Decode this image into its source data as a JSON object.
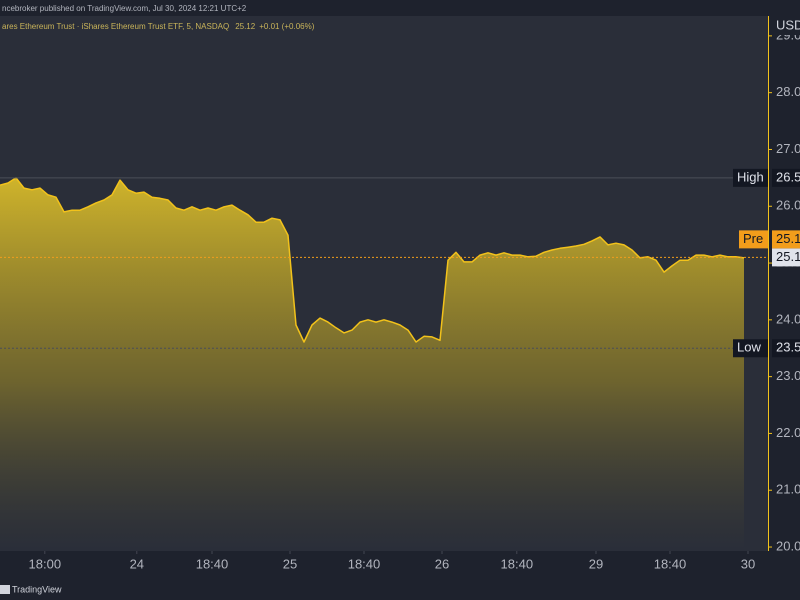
{
  "header": "ncebroker published on TradingView.com, Jul 30, 2024 12:21 UTC+2",
  "footer": "TradingView",
  "chart_data": {
    "type": "area",
    "legend_name": "ares Ethereum Trust · iShares Ethereum Trust ETF, 5, NASDAQ",
    "legend_price": 25.12,
    "legend_change": "+0.01 (+0.06%)",
    "currency": "USD",
    "color": "#f2c21b",
    "x": [
      0,
      1,
      2,
      3,
      4,
      5,
      6,
      7,
      8,
      9,
      10,
      11,
      12,
      13,
      14,
      15,
      16,
      17,
      18,
      19,
      20,
      21,
      22,
      23,
      24,
      25,
      26,
      27,
      28,
      29,
      30,
      31,
      32,
      33,
      34,
      35,
      36,
      37,
      38,
      39,
      40,
      41,
      42,
      43,
      44,
      45,
      46,
      47,
      48,
      49,
      50,
      51,
      52,
      53,
      54,
      55,
      56,
      57,
      58,
      59,
      60,
      61,
      62,
      63,
      64,
      65,
      66,
      67,
      68,
      69,
      70,
      71,
      72,
      73,
      74,
      75,
      76,
      77,
      78,
      79,
      80,
      81,
      82,
      83,
      84,
      85,
      86,
      87,
      88,
      89,
      90,
      91,
      92,
      93
    ],
    "values": [
      26.37,
      26.41,
      26.5,
      26.32,
      26.29,
      26.32,
      26.2,
      26.16,
      25.9,
      25.93,
      25.93,
      25.99,
      26.06,
      26.11,
      26.2,
      26.46,
      26.29,
      26.23,
      26.25,
      26.16,
      26.14,
      26.11,
      25.97,
      25.93,
      25.99,
      25.93,
      25.97,
      25.93,
      25.99,
      26.02,
      25.93,
      25.85,
      25.72,
      25.72,
      25.79,
      25.76,
      25.49,
      23.91,
      23.61,
      23.91,
      24.03,
      23.96,
      23.86,
      23.77,
      23.82,
      23.96,
      24.0,
      23.96,
      24.0,
      23.96,
      23.91,
      23.82,
      23.61,
      23.71,
      23.7,
      23.64,
      25.05,
      25.19,
      25.02,
      25.02,
      25.14,
      25.18,
      25.14,
      25.18,
      25.14,
      25.14,
      25.11,
      25.12,
      25.19,
      25.23,
      25.26,
      25.28,
      25.3,
      25.33,
      25.39,
      25.46,
      25.32,
      25.35,
      25.32,
      25.23,
      25.09,
      25.11,
      25.05,
      24.84,
      24.95,
      25.05,
      25.05,
      25.14,
      25.14,
      25.11,
      25.14,
      25.11,
      25.11,
      25.09
    ],
    "xlim": [
      0,
      96
    ],
    "xticks": [
      {
        "value": 5.6,
        "label": "18:00"
      },
      {
        "value": 17.1,
        "label": "24"
      },
      {
        "value": 26.5,
        "label": "18:40"
      },
      {
        "value": 36.25,
        "label": "25"
      },
      {
        "value": 45.5,
        "label": "18:40"
      },
      {
        "value": 55.25,
        "label": "26"
      },
      {
        "value": 64.6,
        "label": "18:40"
      },
      {
        "value": 74.5,
        "label": "29"
      },
      {
        "value": 83.75,
        "label": "18:40"
      },
      {
        "value": 93.5,
        "label": "30"
      }
    ],
    "ylim": [
      19.93,
      29.35
    ],
    "yticks": [
      {
        "value": 20,
        "label": "20.0"
      },
      {
        "value": 21,
        "label": "21.0"
      },
      {
        "value": 22,
        "label": "22.0"
      },
      {
        "value": 23,
        "label": "23.0"
      },
      {
        "value": 24,
        "label": "24.0"
      },
      {
        "value": 25,
        "label": "25.0"
      },
      {
        "value": 26,
        "label": "26.0"
      },
      {
        "value": 27,
        "label": "27.0"
      },
      {
        "value": 28,
        "label": "28.0"
      },
      {
        "value": 29,
        "label": "29.0"
      }
    ],
    "levels": [
      {
        "name": "High",
        "value": 26.5
      },
      {
        "name": "Low",
        "value": 23.5
      }
    ],
    "pre_market": {
      "name": "Pre",
      "value": 25.1
    },
    "last_price": 25.1
  }
}
